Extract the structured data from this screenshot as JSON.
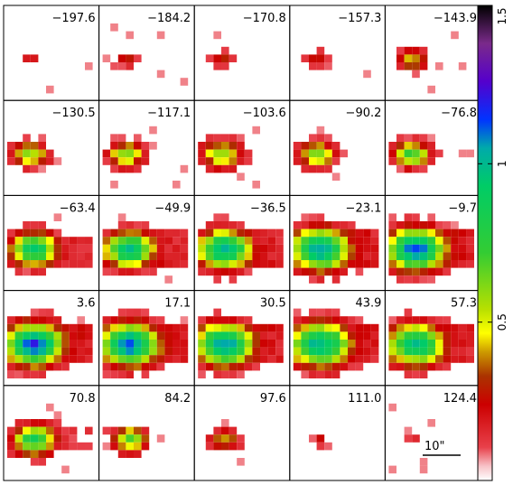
{
  "channel_maps": {
    "velocity_labels": [
      "−197.6",
      "−184.2",
      "−170.8",
      "−157.3",
      "−143.9",
      "−130.5",
      "−117.1",
      "−103.6",
      "−90.2",
      "−76.8",
      "−63.4",
      "−49.9",
      "−36.5",
      "−23.1",
      "−9.7",
      "3.6",
      "17.1",
      "30.5",
      "43.9",
      "57.3",
      "70.8",
      "84.2",
      "97.6",
      "111.0",
      "124.4"
    ],
    "grid": {
      "rows": 5,
      "cols": 5
    },
    "scale_bar": {
      "label": "10\""
    }
  },
  "colorbar": {
    "ticks": [
      {
        "value": 0.5,
        "label": "0.5"
      },
      {
        "value": 1,
        "label": "1"
      },
      {
        "value": 1.5,
        "label": "1.5"
      }
    ],
    "range": [
      0,
      1.5
    ],
    "colors": [
      "#ffffff",
      "#f7c3c8",
      "#e8404a",
      "#cc0000",
      "#aa3300",
      "#cc9900",
      "#ffff00",
      "#b8e000",
      "#33cc33",
      "#00cc66",
      "#00aaaa",
      "#0033ff",
      "#5500cc",
      "#7a2a8a",
      "#000000"
    ]
  }
}
